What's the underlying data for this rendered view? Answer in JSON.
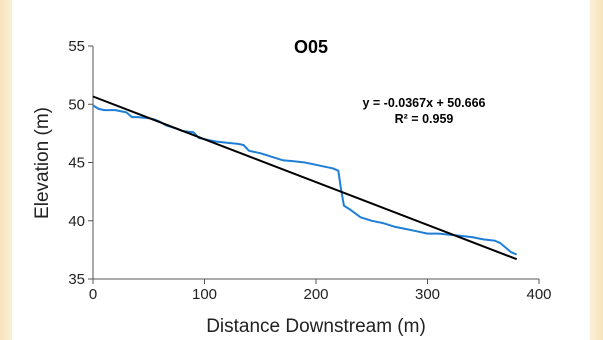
{
  "chart_data": {
    "type": "line",
    "title": "O05",
    "xlabel": "Distance Downstream (m)",
    "ylabel": "Elevation (m)",
    "xlim": [
      0,
      400
    ],
    "ylim": [
      35,
      55
    ],
    "xticks": [
      0,
      100,
      200,
      300,
      400
    ],
    "yticks": [
      35,
      40,
      45,
      50,
      55
    ],
    "xtick_labels": [
      "0",
      "100",
      "200",
      "300",
      "400"
    ],
    "ytick_labels": [
      "35",
      "40",
      "45",
      "50",
      "55"
    ],
    "grid": false,
    "series": [
      {
        "color": "#1f7fd6",
        "x": [
          0,
          5,
          10,
          20,
          30,
          35,
          40,
          50,
          55,
          60,
          65,
          75,
          80,
          90,
          95,
          100,
          110,
          120,
          130,
          135,
          140,
          150,
          160,
          170,
          180,
          190,
          200,
          210,
          215,
          220,
          222,
          225,
          230,
          240,
          250,
          260,
          270,
          280,
          290,
          300,
          310,
          320,
          330,
          340,
          350,
          360,
          365,
          370,
          375,
          380
        ],
        "y": [
          49.9,
          49.6,
          49.5,
          49.5,
          49.3,
          48.9,
          48.9,
          48.8,
          48.7,
          48.5,
          48.2,
          47.9,
          47.7,
          47.6,
          47.1,
          47.0,
          46.8,
          46.7,
          46.6,
          46.5,
          46.0,
          45.8,
          45.5,
          45.2,
          45.1,
          45.0,
          44.8,
          44.6,
          44.5,
          44.3,
          43.0,
          41.3,
          41.0,
          40.3,
          40.0,
          39.8,
          39.5,
          39.3,
          39.1,
          38.9,
          38.9,
          38.8,
          38.7,
          38.6,
          38.4,
          38.3,
          38.1,
          37.7,
          37.3,
          37.1
        ]
      },
      {
        "color": "#000000",
        "x": [
          0,
          380
        ],
        "y": [
          50.666,
          36.7
        ]
      }
    ],
    "annotations": [
      "y = -0.0367x + 50.666",
      "R² = 0.959"
    ]
  }
}
